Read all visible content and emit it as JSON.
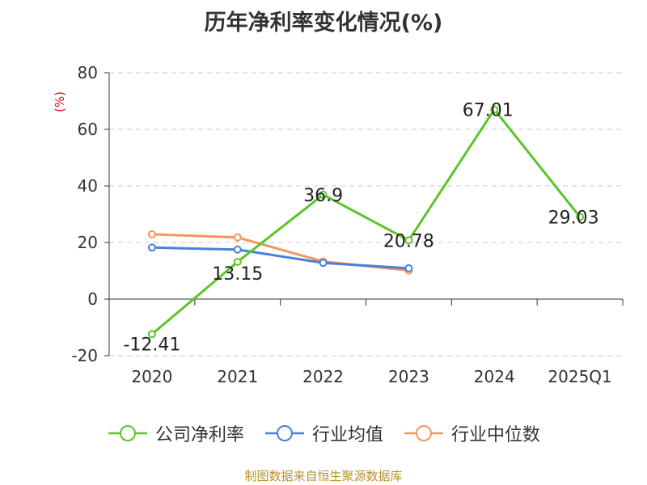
{
  "chart_data": {
    "type": "line",
    "title": "历年净利率变化情况(%)",
    "ylabel": "(%)",
    "xlabel": "",
    "categories": [
      "2020",
      "2021",
      "2022",
      "2023",
      "2024",
      "2025Q1"
    ],
    "ylim": [
      -20,
      80
    ],
    "yticks": [
      -20,
      0,
      20,
      40,
      60,
      80
    ],
    "grid": true,
    "legend_position": "bottom",
    "series": [
      {
        "name": "公司净利率",
        "color": "#5dc42c",
        "values": [
          -12.41,
          13.15,
          36.9,
          20.78,
          67.01,
          29.03
        ],
        "labels": [
          "-12.41",
          "13.15",
          "36.9",
          "20.78",
          "67.01",
          "29.03"
        ]
      },
      {
        "name": "行业均值",
        "color": "#4a7fdc",
        "values": [
          18.2,
          17.5,
          12.8,
          10.9,
          null,
          null
        ]
      },
      {
        "name": "行业中位数",
        "color": "#f59460",
        "values": [
          22.9,
          21.8,
          13.3,
          10.1,
          null,
          null
        ]
      }
    ]
  },
  "footer": {
    "source": "制图数据来自恒生聚源数据库"
  }
}
